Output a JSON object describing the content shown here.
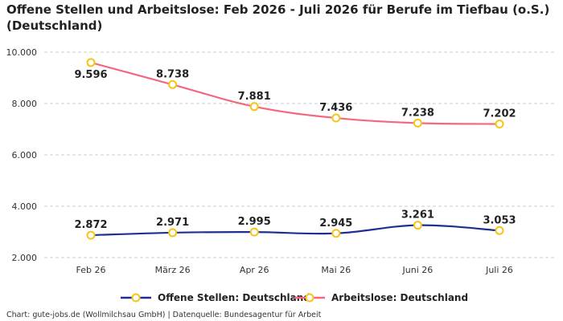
{
  "title": "Offene Stellen und Arbeitslose: Feb 2026 - Juli 2026 für Berufe im Tiefbau (o.S.) (Deutschland)",
  "source": "Chart: gute-jobs.de (Wollmilchsau GmbH) | Datenquelle: Bundesagentur für Arbeit",
  "colors": {
    "offene": "#1f2f8f",
    "arbeitslose": "#f4687d",
    "marker_stroke": "#f5c518",
    "grid": "#cccccc"
  },
  "chart_data": {
    "type": "line",
    "title": "Offene Stellen und Arbeitslose: Feb 2026 - Juli 2026 für Berufe im Tiefbau (o.S.) (Deutschland)",
    "xlabel": "",
    "ylabel": "",
    "categories": [
      "Feb 26",
      "März 26",
      "Apr 26",
      "Mai 26",
      "Juni 26",
      "Juli 26"
    ],
    "ylim": [
      2000,
      10000
    ],
    "yticks": [
      2000,
      4000,
      6000,
      8000,
      10000
    ],
    "ytick_labels": [
      "2.000",
      "4.000",
      "6.000",
      "8.000",
      "10.000"
    ],
    "grid": true,
    "legend_position": "bottom",
    "series": [
      {
        "name": "Offene Stellen: Deutschland",
        "color": "#1f2f8f",
        "values": [
          2872,
          2971,
          2995,
          2945,
          3261,
          3053
        ],
        "labels": [
          "2.872",
          "2.971",
          "2.995",
          "2.945",
          "3.261",
          "3.053"
        ]
      },
      {
        "name": "Arbeitslose: Deutschland",
        "color": "#f4687d",
        "values": [
          9596,
          8738,
          7881,
          7436,
          7238,
          7202
        ],
        "labels": [
          "9.596",
          "8.738",
          "7.881",
          "7.436",
          "7.238",
          "7.202"
        ]
      }
    ]
  }
}
